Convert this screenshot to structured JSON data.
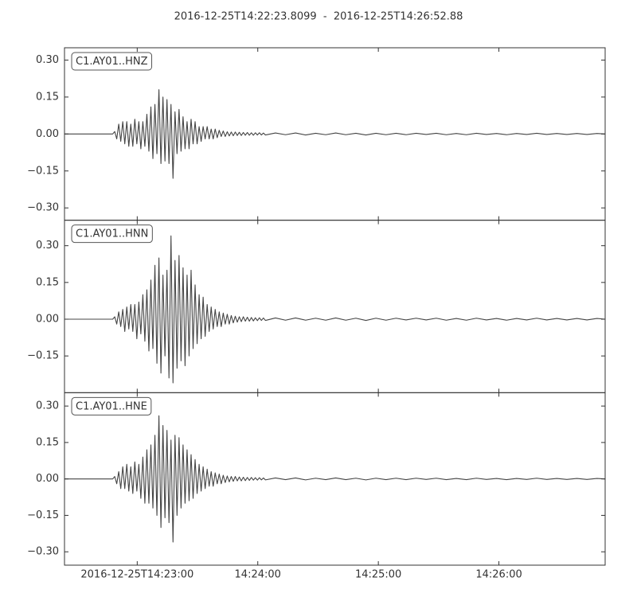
{
  "chart_data": {
    "type": "line",
    "title": "2016-12-25T14:22:23.8099  -  2016-12-25T14:26:52.88",
    "xlim": [
      0,
      269.07
    ],
    "xticks": [
      {
        "value": 36.19,
        "label": "2016-12-25T14:23:00"
      },
      {
        "value": 96.19,
        "label": "14:24:00"
      },
      {
        "value": 156.19,
        "label": "14:25:00"
      },
      {
        "value": 216.19,
        "label": "14:26:00"
      }
    ],
    "x": [
      0,
      10,
      20,
      24,
      25,
      26,
      27,
      28,
      29,
      30,
      31,
      32,
      33,
      34,
      35,
      36,
      37,
      38,
      39,
      40,
      41,
      42,
      43,
      44,
      45,
      46,
      47,
      48,
      49,
      50,
      51,
      52,
      53,
      54,
      55,
      56,
      57,
      58,
      59,
      60,
      61,
      62,
      63,
      64,
      65,
      66,
      67,
      68,
      69,
      70,
      71,
      72,
      73,
      74,
      75,
      76,
      77,
      78,
      79,
      80,
      81,
      82,
      83,
      84,
      85,
      86,
      87,
      88,
      89,
      90,
      91,
      92,
      93,
      94,
      95,
      96,
      97,
      98,
      99,
      100,
      105,
      110,
      115,
      120,
      125,
      130,
      135,
      140,
      145,
      150,
      155,
      160,
      165,
      170,
      175,
      180,
      185,
      190,
      195,
      200,
      205,
      210,
      215,
      220,
      225,
      230,
      235,
      240,
      245,
      250,
      255,
      260,
      265,
      269
    ],
    "series": [
      {
        "name": "C1.AY01..HNZ",
        "color": "#444444",
        "ylim": [
          -0.35,
          0.35
        ],
        "yticks": [
          {
            "value": 0.3,
            "label": "0.30"
          },
          {
            "value": 0.15,
            "label": "0.15"
          },
          {
            "value": 0,
            "label": "0.00"
          },
          {
            "value": -0.15,
            "label": "−0.15"
          },
          {
            "value": -0.3,
            "label": "−0.30"
          }
        ],
        "values": [
          0,
          0,
          0,
          0,
          0.01,
          -0.02,
          0.04,
          -0.03,
          0.05,
          -0.04,
          0.05,
          -0.05,
          0.04,
          -0.05,
          0.06,
          -0.04,
          0.05,
          -0.06,
          0.05,
          -0.05,
          0.08,
          -0.07,
          0.11,
          -0.1,
          0.12,
          -0.08,
          0.18,
          -0.12,
          0.15,
          -0.11,
          0.14,
          -0.12,
          0.12,
          -0.18,
          0.09,
          -0.08,
          0.1,
          -0.07,
          0.07,
          -0.06,
          0.05,
          -0.06,
          0.06,
          -0.04,
          0.05,
          -0.04,
          0.03,
          -0.03,
          0.03,
          -0.02,
          0.03,
          -0.02,
          0.02,
          -0.02,
          0.02,
          -0.015,
          0.015,
          -0.01,
          0.012,
          -0.01,
          0.009,
          -0.008,
          0.008,
          -0.007,
          0.008,
          -0.006,
          0.007,
          -0.006,
          0.006,
          -0.005,
          0.006,
          -0.005,
          0.005,
          -0.005,
          0.005,
          -0.004,
          0.005,
          -0.004,
          0.004,
          -0.004,
          0.004,
          -0.003,
          0.004,
          -0.004,
          0.003,
          -0.003,
          0.004,
          -0.003,
          0.003,
          -0.004,
          0.003,
          -0.003,
          0.003,
          -0.003,
          0.003,
          -0.002,
          0.003,
          -0.003,
          0.002,
          -0.003,
          0.003,
          -0.002,
          0.002,
          -0.003,
          0.002,
          -0.002,
          0.003,
          -0.002,
          0.002,
          -0.002,
          0.002,
          -0.002,
          0.002,
          0
        ]
      },
      {
        "name": "C1.AY01..HNN",
        "color": "#444444",
        "ylim": [
          -0.3,
          0.404
        ],
        "yticks": [
          {
            "value": 0.3,
            "label": "0.30"
          },
          {
            "value": 0.15,
            "label": "0.15"
          },
          {
            "value": 0,
            "label": "0.00"
          },
          {
            "value": -0.15,
            "label": "−0.15"
          }
        ],
        "values": [
          0,
          0,
          0,
          0,
          0.01,
          -0.02,
          0.03,
          -0.03,
          0.04,
          -0.05,
          0.05,
          -0.04,
          0.06,
          -0.05,
          0.06,
          -0.08,
          0.07,
          -0.06,
          0.1,
          -0.09,
          0.12,
          -0.13,
          0.16,
          -0.12,
          0.22,
          -0.18,
          0.25,
          -0.22,
          0.18,
          -0.15,
          0.2,
          -0.24,
          0.34,
          -0.26,
          0.24,
          -0.2,
          0.26,
          -0.17,
          0.21,
          -0.19,
          0.18,
          -0.15,
          0.2,
          -0.12,
          0.14,
          -0.1,
          0.1,
          -0.08,
          0.09,
          -0.07,
          0.06,
          -0.05,
          0.05,
          -0.04,
          0.04,
          -0.03,
          0.03,
          -0.03,
          0.025,
          -0.02,
          0.02,
          -0.02,
          0.015,
          -0.015,
          0.012,
          -0.012,
          0.01,
          -0.01,
          0.01,
          -0.008,
          0.008,
          -0.008,
          0.007,
          -0.007,
          0.006,
          -0.006,
          0.006,
          -0.005,
          0.005,
          -0.005,
          0.005,
          -0.004,
          0.005,
          -0.004,
          0.004,
          -0.004,
          0.005,
          -0.004,
          0.004,
          -0.005,
          0.004,
          -0.004,
          0.004,
          -0.003,
          0.004,
          -0.003,
          0.004,
          -0.004,
          0.003,
          -0.004,
          0.004,
          -0.003,
          0.003,
          -0.004,
          0.003,
          -0.003,
          0.004,
          -0.003,
          0.003,
          -0.003,
          0.003,
          -0.003,
          0.003,
          0
        ]
      },
      {
        "name": "C1.AY01..HNE",
        "color": "#444444",
        "ylim": [
          -0.355,
          0.355
        ],
        "yticks": [
          {
            "value": 0.3,
            "label": "0.30"
          },
          {
            "value": 0.15,
            "label": "0.15"
          },
          {
            "value": 0,
            "label": "0.00"
          },
          {
            "value": -0.15,
            "label": "−0.15"
          },
          {
            "value": -0.3,
            "label": "−0.30"
          }
        ],
        "values": [
          0,
          0,
          0,
          0,
          0.01,
          -0.02,
          0.03,
          -0.04,
          0.05,
          -0.04,
          0.06,
          -0.05,
          0.05,
          -0.06,
          0.07,
          -0.05,
          0.06,
          -0.08,
          0.09,
          -0.1,
          0.12,
          -0.1,
          0.14,
          -0.12,
          0.18,
          -0.15,
          0.26,
          -0.2,
          0.22,
          -0.16,
          0.2,
          -0.18,
          0.16,
          -0.26,
          0.18,
          -0.15,
          0.17,
          -0.12,
          0.14,
          -0.1,
          0.12,
          -0.09,
          0.1,
          -0.08,
          0.08,
          -0.06,
          0.06,
          -0.05,
          0.05,
          -0.04,
          0.04,
          -0.03,
          0.03,
          -0.03,
          0.025,
          -0.02,
          0.02,
          -0.02,
          0.015,
          -0.015,
          0.012,
          -0.012,
          0.01,
          -0.01,
          0.01,
          -0.008,
          0.008,
          -0.008,
          0.007,
          -0.007,
          0.006,
          -0.006,
          0.006,
          -0.005,
          0.005,
          -0.005,
          0.005,
          -0.004,
          0.004,
          -0.004,
          0.004,
          -0.003,
          0.004,
          -0.004,
          0.003,
          -0.003,
          0.004,
          -0.003,
          0.003,
          -0.004,
          0.003,
          -0.003,
          0.003,
          -0.003,
          0.003,
          -0.002,
          0.003,
          -0.003,
          0.002,
          -0.003,
          0.003,
          -0.002,
          0.002,
          -0.003,
          0.002,
          -0.002,
          0.003,
          -0.002,
          0.002,
          -0.002,
          0.002,
          -0.002,
          0.002,
          0
        ]
      }
    ]
  }
}
